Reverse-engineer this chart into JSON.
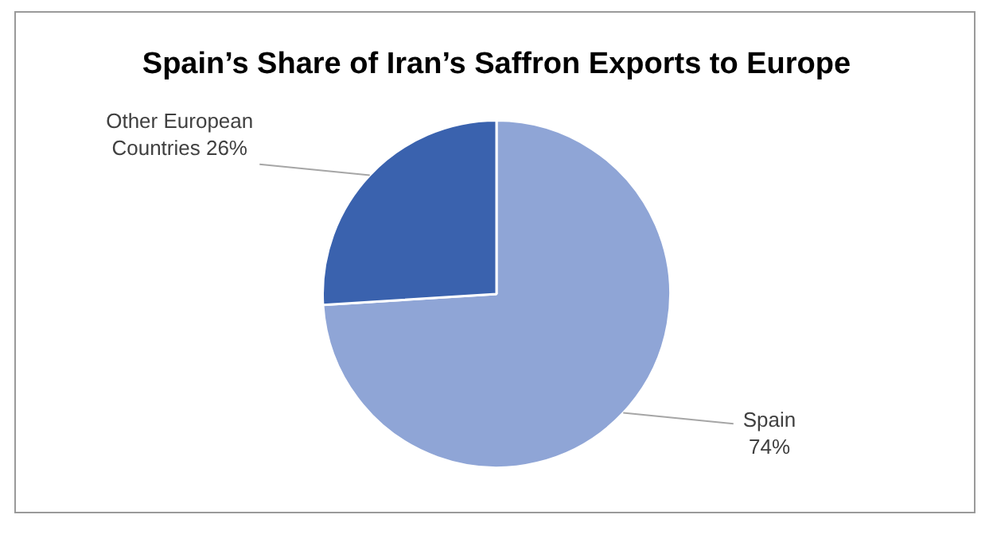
{
  "chart_data": {
    "type": "pie",
    "title": "Spain’s Share of Iran’s Saffron Exports to Europe",
    "categories": [
      "Spain",
      "Other European Countries"
    ],
    "values": [
      74,
      26
    ],
    "colors": [
      "#8fa5d6",
      "#3a62ae"
    ],
    "value_labels": [
      "74%",
      "26%"
    ],
    "legend": false
  }
}
